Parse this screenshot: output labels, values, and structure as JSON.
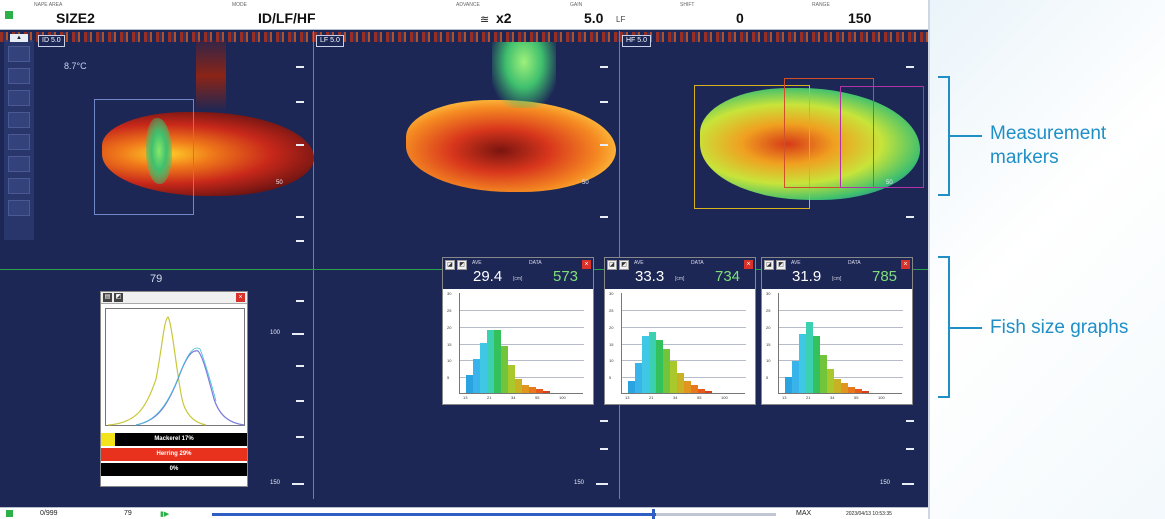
{
  "header": {
    "fields": [
      {
        "caption": "NAPE AREA",
        "value": "SIZE2"
      },
      {
        "caption": "MODE",
        "value": "ID/LF/HF"
      },
      {
        "caption": "ADVANCE",
        "value": "x2"
      },
      {
        "caption": "GAIN",
        "value": "5.0",
        "unit": "LF"
      },
      {
        "caption": "SHIFT",
        "value": "0"
      },
      {
        "caption": "RANGE",
        "value": "150"
      }
    ]
  },
  "panes": [
    {
      "tag": "ID  5.0",
      "temperature": "8.7°C"
    },
    {
      "tag": "LF  5.0"
    },
    {
      "tag": "HF  5.0"
    }
  ],
  "depth_labels": {
    "d50": "50",
    "d100": "100",
    "d150": "150"
  },
  "cursor_value": "79",
  "left_graph": {
    "legend": [
      {
        "label": "Mackerel 17%",
        "color": "#f4e21a"
      },
      {
        "label": "Herring 29%",
        "color": "#e8321e"
      },
      {
        "label": "0%",
        "color": "#000000"
      }
    ]
  },
  "fish_graphs": [
    {
      "ave_caption": "AVE",
      "data_caption": "DATA",
      "ave": "29.4",
      "unit": "[cm]",
      "data": "573",
      "bars": [
        0.18,
        0.34,
        0.5,
        0.62,
        0.62,
        0.47,
        0.28,
        0.14,
        0.08,
        0.06,
        0.04,
        0.02
      ]
    },
    {
      "ave_caption": "AVE",
      "data_caption": "DATA",
      "ave": "33.3",
      "unit": "[cm]",
      "data": "734",
      "bars": [
        0.12,
        0.3,
        0.56,
        0.6,
        0.52,
        0.44,
        0.32,
        0.2,
        0.12,
        0.08,
        0.04,
        0.02
      ]
    },
    {
      "ave_caption": "AVE",
      "data_caption": "DATA",
      "ave": "31.9",
      "unit": "[cm]",
      "data": "785",
      "bars": [
        0.16,
        0.32,
        0.58,
        0.7,
        0.56,
        0.38,
        0.24,
        0.14,
        0.1,
        0.06,
        0.04,
        0.02
      ]
    }
  ],
  "fish_axis": {
    "y_ticks": [
      "30",
      "25",
      "20",
      "15",
      "10",
      "5"
    ],
    "x_ticks": [
      "13",
      "21",
      "34",
      "55",
      "100"
    ]
  },
  "status": {
    "left": "0/999",
    "mid": "79",
    "right": "MAX",
    "time": "2023/04/13 10:53:35"
  },
  "callouts": {
    "markers_line1": "Measurement",
    "markers_line2": "markers",
    "graphs": "Fish size graphs"
  }
}
